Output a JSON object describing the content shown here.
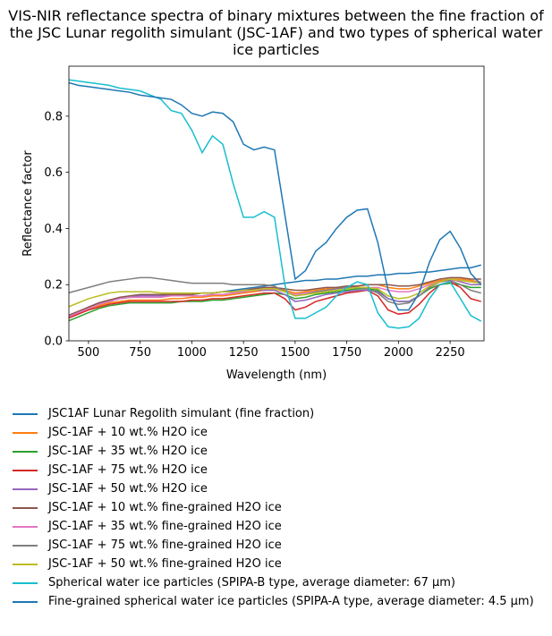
{
  "chart_data": {
    "type": "line",
    "title": "VIS-NIR reflectance spectra of binary mixtures between the fine fraction of the JSC Lunar regolith simulant (JSC-1AF) and two types of spherical water ice particles",
    "x_label": "Wavelength (nm)",
    "y_label": "Reflectance factor",
    "xlim": [
      405,
      2414
    ],
    "ylim": [
      0,
      0.978
    ],
    "xticks": [
      500,
      750,
      1000,
      1250,
      1500,
      1750,
      2000,
      2250
    ],
    "yticks": [
      {
        "value": 0,
        "label": "0.0"
      },
      0.2,
      0.4,
      0.6,
      0.8
    ],
    "x": [
      400,
      450,
      500,
      550,
      600,
      650,
      700,
      750,
      800,
      850,
      900,
      950,
      1000,
      1050,
      1100,
      1150,
      1200,
      1250,
      1300,
      1350,
      1400,
      1450,
      1500,
      1550,
      1600,
      1650,
      1700,
      1750,
      1800,
      1850,
      1900,
      1950,
      2000,
      2050,
      2100,
      2150,
      2200,
      2250,
      2300,
      2350,
      2400
    ],
    "series": [
      {
        "name": "JSC1AF Lunar Regolith simulant (fine fraction)",
        "color": "#1f77b4",
        "values": [
          0.08,
          0.1,
          0.12,
          0.13,
          0.14,
          0.15,
          0.155,
          0.16,
          0.16,
          0.16,
          0.16,
          0.165,
          0.165,
          0.17,
          0.17,
          0.175,
          0.18,
          0.185,
          0.19,
          0.195,
          0.2,
          0.205,
          0.21,
          0.215,
          0.215,
          0.22,
          0.22,
          0.225,
          0.23,
          0.23,
          0.235,
          0.235,
          0.24,
          0.24,
          0.245,
          0.245,
          0.25,
          0.255,
          0.26,
          0.26,
          0.27
        ]
      },
      {
        "name": "JSC-1AF + 10 wt.% H2O ice",
        "color": "#ff7f0e",
        "values": [
          0.08,
          0.095,
          0.11,
          0.125,
          0.135,
          0.14,
          0.145,
          0.145,
          0.145,
          0.145,
          0.15,
          0.15,
          0.155,
          0.155,
          0.16,
          0.16,
          0.165,
          0.17,
          0.175,
          0.18,
          0.185,
          0.18,
          0.17,
          0.175,
          0.18,
          0.185,
          0.19,
          0.19,
          0.195,
          0.2,
          0.2,
          0.19,
          0.185,
          0.185,
          0.195,
          0.205,
          0.215,
          0.22,
          0.22,
          0.215,
          0.21
        ]
      },
      {
        "name": "JSC-1AF + 35 wt.% H2O ice",
        "color": "#2ca02c",
        "values": [
          0.07,
          0.085,
          0.1,
          0.115,
          0.125,
          0.13,
          0.135,
          0.135,
          0.135,
          0.135,
          0.135,
          0.14,
          0.14,
          0.14,
          0.145,
          0.145,
          0.15,
          0.155,
          0.16,
          0.165,
          0.17,
          0.165,
          0.15,
          0.155,
          0.165,
          0.17,
          0.175,
          0.18,
          0.185,
          0.185,
          0.18,
          0.15,
          0.14,
          0.14,
          0.16,
          0.185,
          0.2,
          0.205,
          0.2,
          0.19,
          0.19
        ]
      },
      {
        "name": "JSC-1AF + 75 wt.% H2O ice",
        "color": "#d62728",
        "values": [
          0.08,
          0.095,
          0.11,
          0.12,
          0.13,
          0.135,
          0.14,
          0.14,
          0.14,
          0.14,
          0.14,
          0.14,
          0.145,
          0.145,
          0.15,
          0.15,
          0.155,
          0.16,
          0.165,
          0.17,
          0.17,
          0.15,
          0.11,
          0.12,
          0.14,
          0.15,
          0.16,
          0.17,
          0.175,
          0.18,
          0.16,
          0.11,
          0.095,
          0.1,
          0.13,
          0.17,
          0.2,
          0.21,
          0.19,
          0.15,
          0.14
        ]
      },
      {
        "name": "JSC-1AF + 50 wt.% H2O ice",
        "color": "#9467bd",
        "values": [
          0.085,
          0.1,
          0.12,
          0.135,
          0.145,
          0.15,
          0.155,
          0.16,
          0.16,
          0.16,
          0.16,
          0.16,
          0.16,
          0.16,
          0.165,
          0.165,
          0.17,
          0.175,
          0.18,
          0.18,
          0.18,
          0.165,
          0.14,
          0.145,
          0.155,
          0.165,
          0.17,
          0.175,
          0.18,
          0.18,
          0.175,
          0.15,
          0.14,
          0.14,
          0.16,
          0.19,
          0.21,
          0.22,
          0.21,
          0.2,
          0.2
        ]
      },
      {
        "name": "JSC-1AF + 10 wt.% fine-grained H2O ice",
        "color": "#8c564b",
        "values": [
          0.09,
          0.105,
          0.12,
          0.135,
          0.145,
          0.155,
          0.16,
          0.165,
          0.165,
          0.165,
          0.165,
          0.165,
          0.165,
          0.17,
          0.17,
          0.175,
          0.175,
          0.18,
          0.185,
          0.19,
          0.19,
          0.185,
          0.18,
          0.18,
          0.185,
          0.19,
          0.19,
          0.195,
          0.195,
          0.2,
          0.2,
          0.2,
          0.195,
          0.195,
          0.2,
          0.21,
          0.22,
          0.225,
          0.225,
          0.22,
          0.22
        ]
      },
      {
        "name": "JSC-1AF + 35 wt.% fine-grained H2O ice",
        "color": "#e377c2",
        "values": [
          0.085,
          0.1,
          0.115,
          0.13,
          0.14,
          0.15,
          0.155,
          0.155,
          0.155,
          0.155,
          0.16,
          0.16,
          0.16,
          0.16,
          0.165,
          0.165,
          0.17,
          0.175,
          0.18,
          0.185,
          0.185,
          0.175,
          0.165,
          0.17,
          0.175,
          0.18,
          0.185,
          0.19,
          0.19,
          0.19,
          0.19,
          0.18,
          0.175,
          0.175,
          0.185,
          0.2,
          0.21,
          0.215,
          0.215,
          0.21,
          0.21
        ]
      },
      {
        "name": "JSC-1AF + 75 wt.% fine-grained H2O ice",
        "color": "#7f7f7f",
        "values": [
          0.17,
          0.18,
          0.19,
          0.2,
          0.21,
          0.215,
          0.22,
          0.225,
          0.225,
          0.22,
          0.215,
          0.21,
          0.205,
          0.205,
          0.205,
          0.205,
          0.2,
          0.2,
          0.2,
          0.2,
          0.195,
          0.175,
          0.16,
          0.165,
          0.175,
          0.18,
          0.185,
          0.19,
          0.19,
          0.185,
          0.17,
          0.14,
          0.13,
          0.135,
          0.16,
          0.19,
          0.21,
          0.215,
          0.2,
          0.18,
          0.17
        ]
      },
      {
        "name": "JSC-1AF + 50 wt.% fine-grained H2O ice",
        "color": "#bcbd22",
        "values": [
          0.12,
          0.135,
          0.15,
          0.16,
          0.17,
          0.175,
          0.175,
          0.175,
          0.175,
          0.17,
          0.17,
          0.17,
          0.17,
          0.17,
          0.17,
          0.175,
          0.175,
          0.18,
          0.18,
          0.185,
          0.185,
          0.175,
          0.16,
          0.165,
          0.17,
          0.175,
          0.18,
          0.185,
          0.19,
          0.19,
          0.185,
          0.16,
          0.15,
          0.155,
          0.17,
          0.195,
          0.21,
          0.22,
          0.215,
          0.21,
          0.205
        ]
      },
      {
        "name": "Spherical water ice particles (SPIPA-B type, average diameter: 67 µm)",
        "color": "#17becf",
        "values": [
          0.93,
          0.925,
          0.92,
          0.915,
          0.91,
          0.9,
          0.895,
          0.89,
          0.875,
          0.86,
          0.82,
          0.81,
          0.75,
          0.67,
          0.73,
          0.7,
          0.56,
          0.44,
          0.44,
          0.46,
          0.44,
          0.2,
          0.08,
          0.08,
          0.1,
          0.12,
          0.16,
          0.19,
          0.21,
          0.2,
          0.1,
          0.05,
          0.045,
          0.05,
          0.08,
          0.15,
          0.2,
          0.21,
          0.15,
          0.09,
          0.07
        ]
      },
      {
        "name": "Fine-grained spherical water ice particles (SPIPA-A type, average diameter: 4.5 µm)",
        "color": "#1f77b4",
        "values": [
          0.92,
          0.91,
          0.905,
          0.9,
          0.895,
          0.89,
          0.885,
          0.875,
          0.87,
          0.865,
          0.86,
          0.84,
          0.81,
          0.8,
          0.815,
          0.81,
          0.78,
          0.7,
          0.68,
          0.69,
          0.68,
          0.45,
          0.22,
          0.25,
          0.32,
          0.35,
          0.4,
          0.44,
          0.465,
          0.47,
          0.35,
          0.18,
          0.11,
          0.11,
          0.17,
          0.28,
          0.36,
          0.39,
          0.33,
          0.24,
          0.2
        ]
      }
    ]
  }
}
